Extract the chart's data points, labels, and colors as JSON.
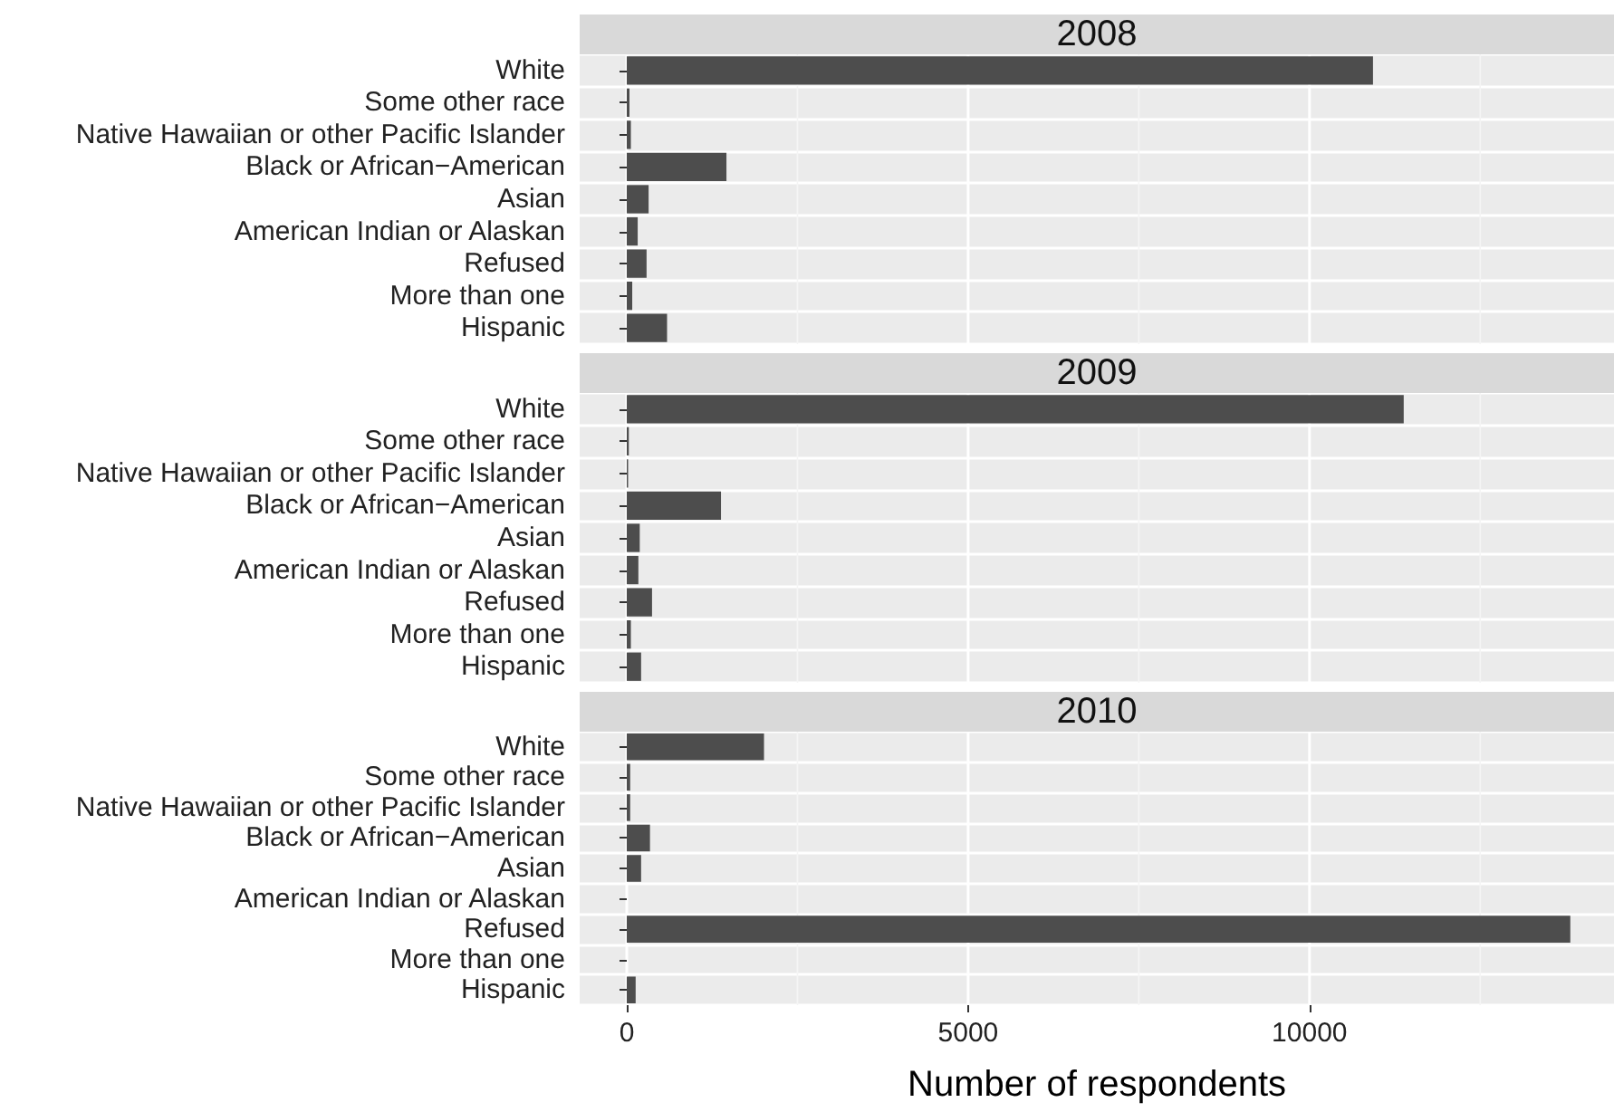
{
  "chart_data": [
    {
      "type": "bar",
      "orientation": "horizontal",
      "title": "2008",
      "categories": [
        "White",
        "Some other race",
        "Native Hawaiian or other Pacific Islander",
        "Black or African−American",
        "Asian",
        "American Indian or Alaskan",
        "Refused",
        "More than one",
        "Hispanic"
      ],
      "series": [
        {
          "color": "#4d4d4d",
          "values": [
            10930,
            40,
            60,
            1460,
            320,
            160,
            290,
            80,
            590
          ]
        }
      ],
      "xlim": [
        -690,
        14460
      ],
      "xticks": [
        0,
        5000,
        10000
      ],
      "grid": true,
      "tick_labels": "y"
    },
    {
      "type": "bar",
      "orientation": "horizontal",
      "title": "2009",
      "categories": [
        "White",
        "Some other race",
        "Native Hawaiian or other Pacific Islander",
        "Black or African−American",
        "Asian",
        "American Indian or Alaskan",
        "Refused",
        "More than one",
        "Hispanic"
      ],
      "series": [
        {
          "color": "#4d4d4d",
          "values": [
            11380,
            30,
            20,
            1380,
            190,
            170,
            370,
            60,
            210
          ]
        }
      ],
      "xlim": [
        -690,
        14460
      ],
      "xticks": [
        0,
        5000,
        10000
      ],
      "grid": true,
      "tick_labels": "y"
    },
    {
      "type": "bar",
      "orientation": "horizontal",
      "title": "2010",
      "xlabel": "Number of respondents",
      "categories": [
        "White",
        "Some other race",
        "Native Hawaiian or other Pacific Islander",
        "Black or African−American",
        "Asian",
        "American Indian or Alaskan",
        "Refused",
        "More than one",
        "Hispanic"
      ],
      "series": [
        {
          "color": "#4d4d4d",
          "values": [
            2010,
            50,
            50,
            340,
            210,
            0,
            13820,
            0,
            130
          ]
        }
      ],
      "xlim": [
        -690,
        14460
      ],
      "xticks": [
        0,
        5000,
        10000
      ],
      "grid": true
    }
  ]
}
